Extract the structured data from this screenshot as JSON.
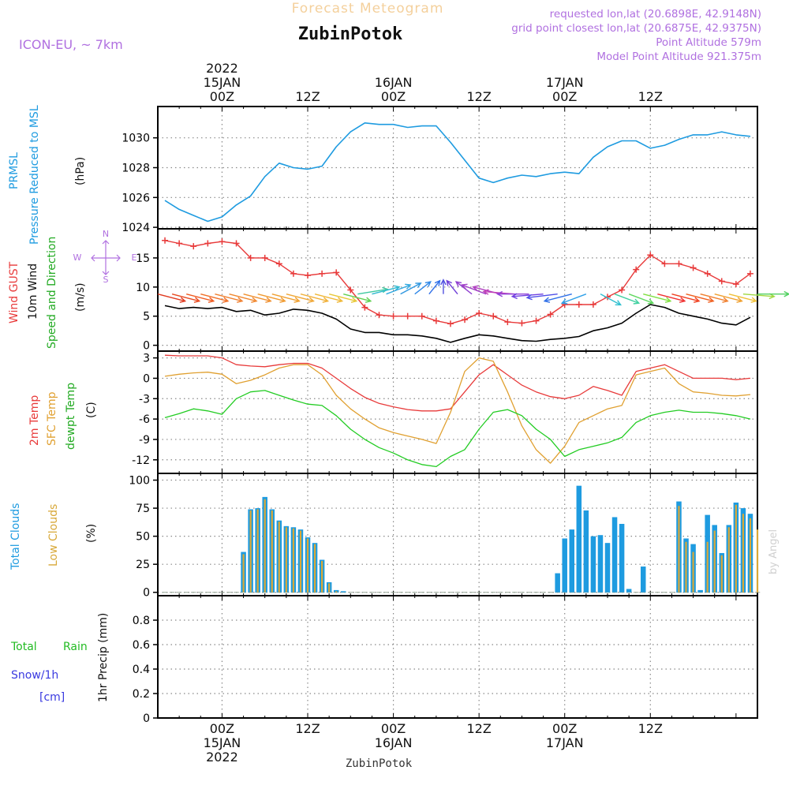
{
  "header": {
    "title_faded": "Forecast Meteogram",
    "station": "ZubinPotok",
    "model": "ICON-EU, ~ 7km",
    "requested": "requested lon,lat (20.6898E, 42.9148N)",
    "closest": "grid point closest lon,lat (20.6875E, 42.9375N)",
    "point_alt": "Point Altitude 579m",
    "model_alt": "Model Point Altitude 921.375m",
    "footer_station": "ZubinPotok",
    "credit": "by Angel"
  },
  "time_axis": {
    "hours": [
      -9,
      75
    ],
    "major_ticks": [
      0,
      12,
      24,
      36,
      48,
      60
    ],
    "top_labels": [
      {
        "hour": 0,
        "lines": [
          "2022",
          "15JAN",
          "00Z"
        ]
      },
      {
        "hour": 12,
        "lines": [
          "12Z"
        ]
      },
      {
        "hour": 24,
        "lines": [
          "16JAN",
          "00Z"
        ]
      },
      {
        "hour": 36,
        "lines": [
          "12Z"
        ]
      },
      {
        "hour": 48,
        "lines": [
          "17JAN",
          "00Z"
        ]
      },
      {
        "hour": 60,
        "lines": [
          "12Z"
        ]
      }
    ],
    "bottom_labels": [
      {
        "hour": 0,
        "lines": [
          "00Z",
          "15JAN",
          "2022"
        ]
      },
      {
        "hour": 12,
        "lines": [
          "12Z"
        ]
      },
      {
        "hour": 24,
        "lines": [
          "00Z",
          "16JAN"
        ]
      },
      {
        "hour": 36,
        "lines": [
          "12Z"
        ]
      },
      {
        "hour": 48,
        "lines": [
          "00Z",
          "17JAN"
        ]
      },
      {
        "hour": 60,
        "lines": [
          "12Z"
        ]
      }
    ]
  },
  "colors": {
    "pressure": "#1e9be0",
    "gust": "#e83a3a",
    "wind": "#000000",
    "sfc_temp": "#e0a030",
    "dewpt": "#22cc22",
    "total_clouds": "#1e9be0",
    "low_clouds": "#d8a838",
    "rain": "#22bb22",
    "snow": "#3a3ae0",
    "label_purple": "#b070e0",
    "grid": "#888888"
  },
  "panels": {
    "pressure": {
      "labels": [
        "PRMSL",
        "Pressure Reduced to MSL"
      ],
      "unit": "(hPa)",
      "ticks": [
        "1024",
        "1026",
        "1028",
        "1030"
      ]
    },
    "wind": {
      "labels": [
        "Wind GUST",
        "10m Wind",
        "Speed and Direction"
      ],
      "unit": "(m/s)",
      "ticks": [
        "0",
        "5",
        "10",
        "15"
      ],
      "compass": [
        "N",
        "W",
        "E",
        "S"
      ]
    },
    "temp": {
      "labels": [
        "2m Temp",
        "SFC Temp",
        "dewpt Temp"
      ],
      "unit": "(C)",
      "ticks": [
        "-12",
        "-9",
        "-6",
        "-3",
        "0",
        "3"
      ]
    },
    "clouds": {
      "labels": [
        "Total Clouds",
        "Low Clouds"
      ],
      "unit": "(%)",
      "ticks": [
        "0",
        "25",
        "50",
        "75",
        "100"
      ]
    },
    "precip": {
      "labels": [
        "Total",
        "Rain",
        "Snow/1h",
        "[cm]"
      ],
      "unit": "1hr Precip (mm)",
      "ticks": [
        "0",
        "0.2",
        "0.4",
        "0.6",
        "0.8"
      ]
    }
  },
  "chart_data": [
    {
      "type": "line",
      "title": "PRMSL Pressure Reduced to MSL",
      "ylabel": "(hPa)",
      "ylim": [
        1023.9,
        1032.1
      ],
      "series": [
        {
          "name": "PRMSL",
          "x": [
            -8,
            -6,
            -4,
            -2,
            0,
            2,
            4,
            6,
            8,
            10,
            12,
            14,
            16,
            18,
            20,
            22,
            24,
            26,
            28,
            30,
            32,
            34,
            36,
            38,
            40,
            42,
            44,
            46,
            48,
            50,
            52,
            54,
            56,
            58,
            60,
            62,
            64,
            66,
            68,
            70,
            72,
            74
          ],
          "y": [
            1025.8,
            1025.2,
            1024.8,
            1024.4,
            1024.7,
            1025.5,
            1026.1,
            1027.4,
            1028.3,
            1028.0,
            1027.9,
            1028.1,
            1029.4,
            1030.4,
            1031.0,
            1030.9,
            1030.9,
            1030.7,
            1030.8,
            1030.8,
            1029.7,
            1028.5,
            1027.3,
            1027.0,
            1027.3,
            1027.5,
            1027.4,
            1027.6,
            1027.7,
            1027.6,
            1028.7,
            1029.4,
            1029.8,
            1029.8,
            1029.3,
            1029.5,
            1029.9,
            1030.2,
            1030.2,
            1030.4,
            1030.2,
            1030.1
          ]
        }
      ]
    },
    {
      "type": "line",
      "title": "Wind GUST 10m Wind Speed and Direction",
      "ylabel": "(m/s)",
      "ylim": [
        -1,
        20
      ],
      "series": [
        {
          "name": "Wind GUST",
          "x": [
            -8,
            -6,
            -4,
            -2,
            0,
            2,
            4,
            6,
            8,
            10,
            12,
            14,
            16,
            18,
            20,
            22,
            24,
            26,
            28,
            30,
            32,
            34,
            36,
            38,
            40,
            42,
            44,
            46,
            48,
            50,
            52,
            54,
            56,
            58,
            60,
            62,
            64,
            66,
            68,
            70,
            72,
            74
          ],
          "y": [
            18.0,
            17.5,
            17.0,
            17.5,
            17.8,
            17.5,
            15.0,
            15.0,
            14.0,
            12.3,
            12.0,
            12.3,
            12.5,
            9.5,
            6.5,
            5.2,
            5.0,
            5.0,
            5.0,
            4.2,
            3.7,
            4.4,
            5.5,
            5.0,
            4.0,
            3.8,
            4.2,
            5.3,
            7.0,
            7.0,
            7.0,
            8.3,
            9.5,
            13.0,
            15.5,
            14.0,
            14.0,
            13.3,
            12.3,
            11.0,
            10.5,
            12.3
          ]
        },
        {
          "name": "10m Wind",
          "x": [
            -8,
            -6,
            -4,
            -2,
            0,
            2,
            4,
            6,
            8,
            10,
            12,
            14,
            16,
            18,
            20,
            22,
            24,
            26,
            28,
            30,
            32,
            34,
            36,
            38,
            40,
            42,
            44,
            46,
            48,
            50,
            52,
            54,
            56,
            58,
            60,
            62,
            64,
            66,
            68,
            70,
            72,
            74
          ],
          "y": [
            6.8,
            6.3,
            6.5,
            6.3,
            6.5,
            5.8,
            6.0,
            5.2,
            5.5,
            6.2,
            6.0,
            5.5,
            4.5,
            2.8,
            2.2,
            2.2,
            1.8,
            1.8,
            1.6,
            1.2,
            0.5,
            1.2,
            1.8,
            1.6,
            1.2,
            0.8,
            0.7,
            1.0,
            1.2,
            1.5,
            2.5,
            3.0,
            3.8,
            5.5,
            7.0,
            6.5,
            5.5,
            5.0,
            4.5,
            3.8,
            3.5,
            4.8
          ]
        }
      ]
    },
    {
      "type": "line",
      "title": "2m Temp SFC Temp dewpt Temp",
      "ylabel": "(C)",
      "ylim": [
        -14,
        4
      ],
      "series": [
        {
          "name": "2m Temp",
          "x": [
            -8,
            -6,
            -4,
            -2,
            0,
            2,
            4,
            6,
            8,
            10,
            12,
            14,
            16,
            18,
            20,
            22,
            24,
            26,
            28,
            30,
            32,
            34,
            36,
            38,
            40,
            42,
            44,
            46,
            48,
            50,
            52,
            54,
            56,
            58,
            60,
            62,
            64,
            66,
            68,
            70,
            72,
            74
          ],
          "y": [
            3.4,
            3.3,
            3.3,
            3.3,
            3.0,
            2.0,
            1.8,
            1.7,
            2.0,
            2.2,
            2.2,
            1.5,
            0.0,
            -1.5,
            -2.8,
            -3.7,
            -4.2,
            -4.6,
            -4.8,
            -4.8,
            -4.5,
            -2.0,
            0.5,
            2.0,
            0.5,
            -1.0,
            -2.0,
            -2.7,
            -3.0,
            -2.5,
            -1.2,
            -1.8,
            -2.5,
            1.0,
            1.5,
            2.0,
            1.0,
            0.0,
            0.0,
            0.0,
            -0.2,
            0.0
          ]
        },
        {
          "name": "SFC Temp",
          "x": [
            -8,
            -6,
            -4,
            -2,
            0,
            2,
            4,
            6,
            8,
            10,
            12,
            14,
            16,
            18,
            20,
            22,
            24,
            26,
            28,
            30,
            32,
            34,
            36,
            38,
            40,
            42,
            44,
            46,
            48,
            50,
            52,
            54,
            56,
            58,
            60,
            62,
            64,
            66,
            68,
            70,
            72,
            74
          ],
          "y": [
            0.3,
            0.6,
            0.8,
            0.9,
            0.6,
            -0.8,
            -0.3,
            0.5,
            1.5,
            2.0,
            2.0,
            0.5,
            -2.5,
            -4.5,
            -6.0,
            -7.3,
            -8.0,
            -8.5,
            -9.0,
            -9.6,
            -5.0,
            1.0,
            3.0,
            2.5,
            -2.0,
            -7.0,
            -10.5,
            -12.5,
            -10.0,
            -6.5,
            -5.5,
            -4.5,
            -4.0,
            0.5,
            1.0,
            1.5,
            -0.8,
            -2.0,
            -2.2,
            -2.5,
            -2.6,
            -2.4
          ]
        },
        {
          "name": "dewpt Temp",
          "x": [
            -8,
            -6,
            -4,
            -2,
            0,
            2,
            4,
            6,
            8,
            10,
            12,
            14,
            16,
            18,
            20,
            22,
            24,
            26,
            28,
            30,
            32,
            34,
            36,
            38,
            40,
            42,
            44,
            46,
            48,
            50,
            52,
            54,
            56,
            58,
            60,
            62,
            64,
            66,
            68,
            70,
            72,
            74
          ],
          "y": [
            -5.8,
            -5.2,
            -4.5,
            -4.8,
            -5.3,
            -3.0,
            -2.0,
            -1.8,
            -2.5,
            -3.2,
            -3.8,
            -4.0,
            -5.5,
            -7.5,
            -9.0,
            -10.2,
            -11.0,
            -12.0,
            -12.7,
            -13.0,
            -11.5,
            -10.5,
            -7.5,
            -5.0,
            -4.6,
            -5.5,
            -7.5,
            -9.0,
            -11.5,
            -10.5,
            -10.0,
            -9.5,
            -8.7,
            -6.5,
            -5.5,
            -5.0,
            -4.7,
            -5.0,
            -5.0,
            -5.2,
            -5.5,
            -6.0
          ]
        }
      ]
    },
    {
      "type": "bar",
      "title": "Total Clouds Low Clouds",
      "ylabel": "(%)",
      "ylim": [
        -3,
        106
      ],
      "x": [
        -8,
        -7,
        -6,
        -5,
        -4,
        -3,
        -2,
        -1,
        0,
        1,
        2,
        3,
        4,
        5,
        6,
        7,
        8,
        9,
        10,
        11,
        12,
        13,
        14,
        15,
        16,
        17,
        18,
        19,
        20,
        21,
        22,
        23,
        24,
        25,
        26,
        27,
        28,
        29,
        30,
        31,
        32,
        33,
        34,
        35,
        36,
        37,
        38,
        39,
        40,
        41,
        42,
        43,
        44,
        45,
        46,
        47,
        48,
        49,
        50,
        51,
        52,
        53,
        54,
        55,
        56,
        57,
        58,
        59,
        60,
        61,
        62,
        63,
        64,
        65,
        66,
        67,
        68,
        69,
        70,
        71,
        72,
        73,
        74,
        75
      ],
      "series": [
        {
          "name": "Total Clouds",
          "values": [
            0,
            0,
            0,
            0,
            0,
            0,
            0,
            0,
            0,
            0,
            0,
            36,
            74,
            75,
            85,
            74,
            64,
            59,
            58,
            56,
            49,
            44,
            29,
            9,
            2,
            1,
            0,
            0,
            0,
            0,
            0,
            0,
            0,
            0,
            0,
            0,
            0,
            0,
            0,
            0,
            0,
            0,
            0,
            0,
            0,
            0,
            0,
            0,
            0,
            0,
            0,
            0,
            0,
            0,
            0,
            17,
            48,
            56,
            95,
            73,
            50,
            51,
            44,
            67,
            61,
            3,
            0,
            23,
            0,
            0,
            0,
            0,
            81,
            48,
            43,
            2,
            69,
            60,
            35,
            60,
            80,
            75,
            70,
            0
          ]
        },
        {
          "name": "Low Clouds",
          "values": [
            0,
            0,
            0,
            0,
            0,
            0,
            0,
            0,
            0,
            0,
            0,
            34,
            73,
            74,
            83,
            73,
            63,
            58,
            57,
            55,
            48,
            43,
            28,
            8,
            1,
            0,
            0,
            0,
            0,
            0,
            0,
            0,
            0,
            0,
            0,
            0,
            0,
            0,
            0,
            0,
            0,
            0,
            0,
            0,
            0,
            0,
            0,
            0,
            0,
            0,
            0,
            0,
            0,
            0,
            0,
            0,
            0,
            0,
            0,
            0,
            0,
            0,
            0,
            0,
            0,
            0,
            0,
            0,
            0,
            0,
            0,
            0,
            77,
            45,
            36,
            0,
            45,
            55,
            33,
            58,
            78,
            70,
            66,
            56
          ]
        }
      ]
    },
    {
      "type": "bar",
      "title": "Total Rain Snow/1h [cm]",
      "ylabel": "1hr Precip (mm)",
      "ylim": [
        0,
        1.0
      ],
      "x": [],
      "series": [
        {
          "name": "Total Rain",
          "values": []
        },
        {
          "name": "Snow/1h",
          "values": []
        }
      ]
    }
  ],
  "wind_arrows": {
    "x": [
      -9,
      -7,
      -5,
      -3,
      -1,
      1,
      3,
      5,
      7,
      9,
      11,
      13,
      15,
      17,
      19,
      21,
      23,
      25,
      27,
      29,
      31,
      33,
      35,
      37,
      39,
      41,
      43,
      45,
      47,
      49,
      51,
      53,
      55,
      57,
      59,
      61,
      63,
      65,
      67,
      69,
      71,
      73,
      75
    ],
    "dir_deg": [
      300,
      300,
      300,
      300,
      300,
      300,
      300,
      300,
      300,
      300,
      300,
      300,
      300,
      300,
      250,
      240,
      230,
      220,
      210,
      200,
      180,
      160,
      150,
      130,
      120,
      100,
      90,
      80,
      75,
      60,
      50,
      320,
      310,
      310,
      300,
      300,
      300,
      300,
      300,
      300,
      300,
      280,
      270
    ],
    "colors": [
      "#e03a20",
      "#e84a20",
      "#f05a20",
      "#f07028",
      "#f08030",
      "#f08830",
      "#f09030",
      "#f09a30",
      "#f0a030",
      "#f0a838",
      "#f0b038",
      "#f0b838",
      "#e8c838",
      "#60d050",
      "#40c8a0",
      "#30b8d0",
      "#30a8e0",
      "#3098e0",
      "#3088e8",
      "#3070e8",
      "#5050e0",
      "#7040d8",
      "#9040d0",
      "#a040c8",
      "#b040c0",
      "#c040b8",
      "#9040d8",
      "#7040e0",
      "#5050e8",
      "#3070e8",
      "#30a0e8",
      "#30c0d0",
      "#40d0a0",
      "#60d860",
      "#80e040",
      "#f03030",
      "#f04020",
      "#f06020",
      "#f08030",
      "#f0a030",
      "#f0c038",
      "#a0d840",
      "#50d060"
    ]
  }
}
